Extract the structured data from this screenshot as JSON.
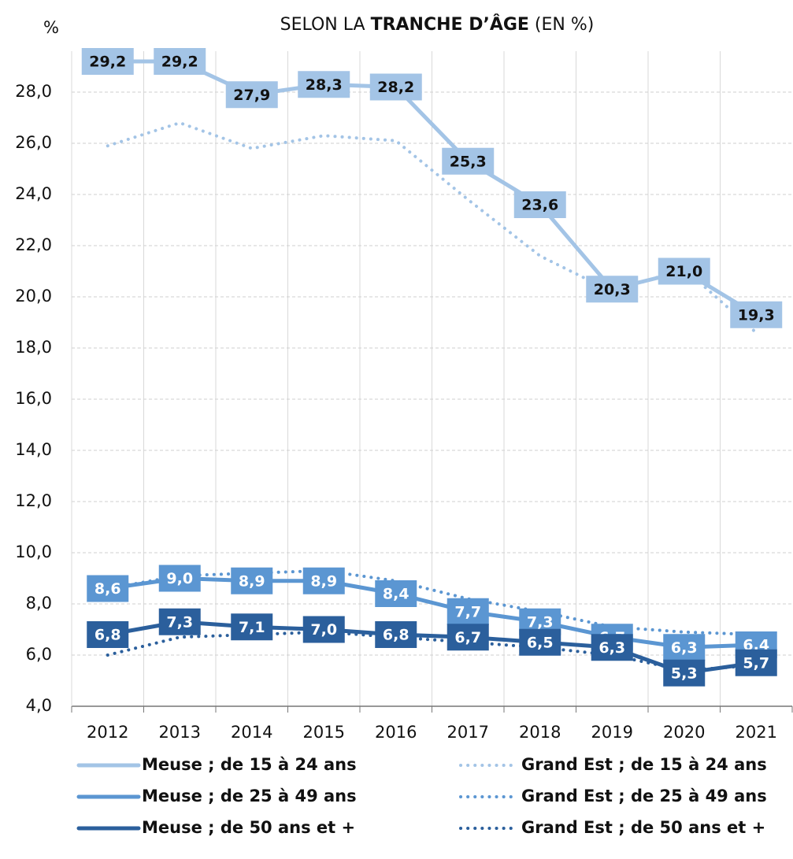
{
  "chart_data": {
    "type": "line",
    "title": [
      "SELON LA ",
      "TRANCHE D’ÂGE",
      " (EN %)"
    ],
    "y_label": "%",
    "categories": [
      "2012",
      "2013",
      "2014",
      "2015",
      "2016",
      "2017",
      "2018",
      "2019",
      "2020",
      "2021"
    ],
    "ylim": [
      4,
      29.6
    ],
    "yticks": [
      {
        "value": 4,
        "label": "4,0"
      },
      {
        "value": 6,
        "label": "6,0"
      },
      {
        "value": 8,
        "label": "8,0"
      },
      {
        "value": 10,
        "label": "10,0"
      },
      {
        "value": 12,
        "label": "12,0"
      },
      {
        "value": 14,
        "label": "14,0"
      },
      {
        "value": 16,
        "label": "16,0"
      },
      {
        "value": 18,
        "label": "18,0"
      },
      {
        "value": 20,
        "label": "20,0"
      },
      {
        "value": 22,
        "label": "22,0"
      },
      {
        "value": 24,
        "label": "24,0"
      },
      {
        "value": 26,
        "label": "26,0"
      },
      {
        "value": 28,
        "label": "28,0"
      }
    ],
    "grid": true,
    "series": [
      {
        "name": "Meuse ; de 15 à 24 ans",
        "color": "#a3c4e6",
        "line_style": "solid",
        "values": [
          29.2,
          29.2,
          27.9,
          28.3,
          28.2,
          25.3,
          23.6,
          20.3,
          21.0,
          19.3
        ],
        "value_labels": [
          "29,2",
          "29,2",
          "27,9",
          "28,3",
          "28,2",
          "25,3",
          "23,6",
          "20,3",
          "21,0",
          "19,3"
        ]
      },
      {
        "name": "Meuse ; de 25 à 49 ans",
        "color": "#5b96d2",
        "line_style": "solid",
        "values": [
          8.6,
          9.0,
          8.9,
          8.9,
          8.4,
          7.7,
          7.3,
          6.7,
          6.3,
          6.4
        ],
        "value_labels": [
          "8,6",
          "9,0",
          "8,9",
          "8,9",
          "8,4",
          "7,7",
          "7,3",
          "6,7",
          "6,3",
          "6,4"
        ]
      },
      {
        "name": "Meuse ; de 50 ans et +",
        "color": "#2b5f9c",
        "line_style": "solid",
        "values": [
          6.8,
          7.3,
          7.1,
          7.0,
          6.8,
          6.7,
          6.5,
          6.3,
          5.3,
          5.7
        ],
        "value_labels": [
          "6,8",
          "7,3",
          "7,1",
          "7,0",
          "6,8",
          "6,7",
          "6,5",
          "6,3",
          "5,3",
          "5,7"
        ]
      },
      {
        "name": "Grand Est ; de 15 à 24 ans",
        "color": "#a3c4e6",
        "line_style": "dotted",
        "values": [
          25.9,
          26.8,
          25.8,
          26.3,
          26.1,
          23.8,
          21.6,
          20.2,
          21.1,
          18.6
        ]
      },
      {
        "name": "Grand Est ; de 25 à 49 ans",
        "color": "#5b96d2",
        "line_style": "dotted",
        "values": [
          8.6,
          9.1,
          9.2,
          9.3,
          8.9,
          8.2,
          7.7,
          7.1,
          6.9,
          6.8
        ]
      },
      {
        "name": "Grand Est ; de 50 ans et +",
        "color": "#2b5f9c",
        "line_style": "dotted",
        "values": [
          6.0,
          6.7,
          6.8,
          6.9,
          6.7,
          6.5,
          6.3,
          6.0,
          5.4,
          5.6
        ]
      }
    ]
  }
}
